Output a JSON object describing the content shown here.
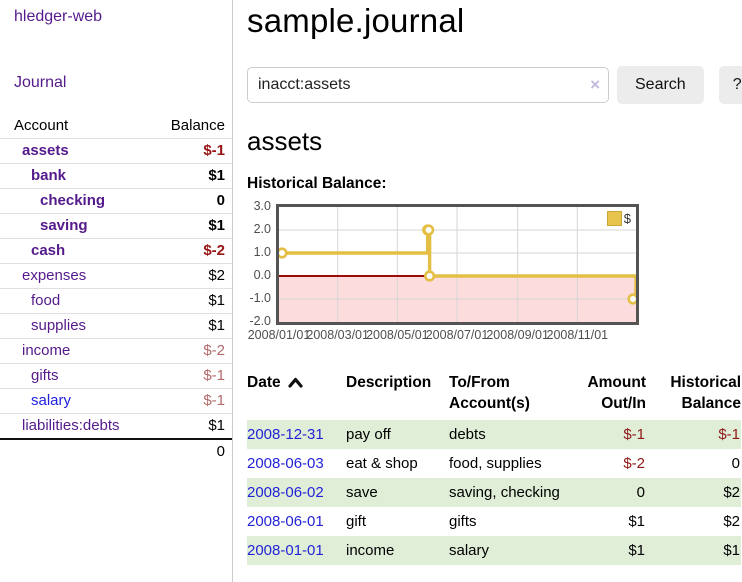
{
  "sidebar": {
    "brand": "hledger-web",
    "journal_label": "Journal",
    "accounts": {
      "col_account": "Account",
      "col_balance": "Balance",
      "rows": [
        {
          "name": "assets",
          "depth": 1,
          "bold": true,
          "balance": "$-1",
          "neg": "strong"
        },
        {
          "name": "bank",
          "depth": 2,
          "bold": true,
          "balance": "$1",
          "neg": ""
        },
        {
          "name": "checking",
          "depth": 3,
          "bold": true,
          "balance": "0",
          "neg": ""
        },
        {
          "name": "saving",
          "depth": 3,
          "bold": true,
          "balance": "$1",
          "neg": ""
        },
        {
          "name": "cash",
          "depth": 2,
          "bold": true,
          "balance": "$-2",
          "neg": "strong"
        },
        {
          "name": "expenses",
          "depth": 1,
          "bold": false,
          "balance": "$2",
          "neg": ""
        },
        {
          "name": "food",
          "depth": 2,
          "bold": false,
          "balance": "$1",
          "neg": ""
        },
        {
          "name": "supplies",
          "depth": 2,
          "bold": false,
          "balance": "$1",
          "neg": ""
        },
        {
          "name": "income",
          "depth": 1,
          "bold": false,
          "balance": "$-2",
          "neg": "soft"
        },
        {
          "name": "gifts",
          "depth": 2,
          "bold": false,
          "balance": "$-1",
          "neg": "soft"
        },
        {
          "name": "salary",
          "depth": 2,
          "bold": false,
          "balance": "$-1",
          "neg": "soft",
          "link_color": "blue"
        },
        {
          "name": "liabilities:debts",
          "depth": 1,
          "bold": false,
          "balance": "$1",
          "neg": ""
        }
      ],
      "total": "0"
    }
  },
  "main": {
    "title": "sample.journal",
    "search": {
      "value": "inacct:assets",
      "clear_icon": "×",
      "button_label": "Search",
      "help_label": "?"
    },
    "account_heading": "assets",
    "section_label": "Historical Balance:"
  },
  "chart_data": {
    "type": "line",
    "style": "step",
    "title": "Historical Balance:",
    "x_range": [
      "2008/01/01",
      "2008/12/31"
    ],
    "ylim": [
      -2,
      3
    ],
    "y_ticks": [
      3,
      2,
      1,
      0,
      -1,
      -2
    ],
    "y_tick_labels": [
      "3.0",
      "2.0",
      "1.0",
      "0.0",
      "-1.0",
      "-2.0"
    ],
    "x_ticks": [
      "2008/01/01",
      "2008/03/01",
      "2008/05/01",
      "2008/07/01",
      "2008/09/01",
      "2008/11/01"
    ],
    "series": [
      {
        "name": "$",
        "color": "#e3bf45",
        "points": [
          [
            "2008/01/01",
            1
          ],
          [
            "2008/06/01",
            2
          ],
          [
            "2008/06/02",
            2
          ],
          [
            "2008/06/03",
            0
          ],
          [
            "2008/12/31",
            -1
          ]
        ]
      }
    ],
    "legend_position": "top-right",
    "grid": true,
    "negative_region_color": "#fcdcdc",
    "zero_line_color": "#9c0a0a"
  },
  "register": {
    "columns": [
      "Date",
      "Description",
      "To/From Account(s)",
      "Amount Out/In",
      "Historical Balance"
    ],
    "rows": [
      {
        "date": "2008-12-31",
        "description": "pay off",
        "accounts": "debts",
        "amount": "$-1",
        "amount_neg": true,
        "balance": "$-1",
        "balance_neg": true
      },
      {
        "date": "2008-06-03",
        "description": "eat & shop",
        "accounts": "food, supplies",
        "amount": "$-2",
        "amount_neg": true,
        "balance": "0",
        "balance_neg": false
      },
      {
        "date": "2008-06-02",
        "description": "save",
        "accounts": "saving, checking",
        "amount": "0",
        "amount_neg": false,
        "balance": "$2",
        "balance_neg": false
      },
      {
        "date": "2008-06-01",
        "description": "gift",
        "accounts": "gifts",
        "amount": "$1",
        "amount_neg": false,
        "balance": "$2",
        "balance_neg": false
      },
      {
        "date": "2008-01-01",
        "description": "income",
        "accounts": "salary",
        "amount": "$1",
        "amount_neg": false,
        "balance": "$1",
        "balance_neg": false
      }
    ]
  }
}
